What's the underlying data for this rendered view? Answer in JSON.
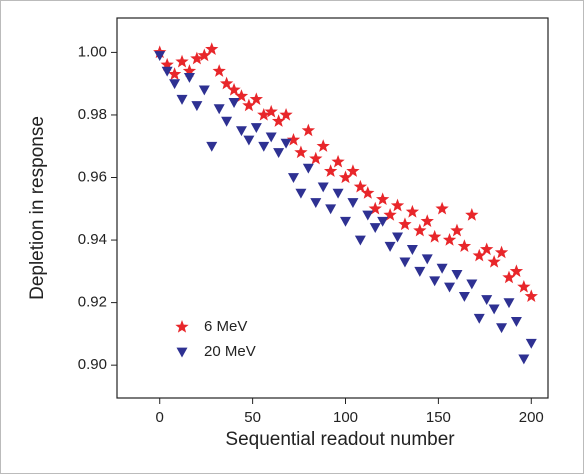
{
  "chart_data": {
    "type": "scatter",
    "xlabel": "Sequential readout number",
    "ylabel": "Depletion in response",
    "xlim": [
      -23,
      209
    ],
    "ylim": [
      0.8895,
      1.011
    ],
    "xticks": [
      0,
      50,
      100,
      150,
      200
    ],
    "yticks": [
      {
        "value": 0.9,
        "label": "0.90"
      },
      {
        "value": 0.92,
        "label": "0.92"
      },
      {
        "value": 0.94,
        "label": "0.94"
      },
      {
        "value": 0.96,
        "label": "0.96"
      },
      {
        "value": 0.98,
        "label": "0.98"
      },
      {
        "value": 1.0,
        "label": "1.00"
      }
    ],
    "x": [
      0,
      4,
      8,
      12,
      16,
      20,
      24,
      28,
      32,
      36,
      40,
      44,
      48,
      52,
      56,
      60,
      64,
      68,
      72,
      76,
      80,
      84,
      88,
      92,
      96,
      100,
      104,
      108,
      112,
      116,
      120,
      124,
      128,
      132,
      136,
      140,
      144,
      148,
      152,
      156,
      160,
      164,
      168,
      172,
      176,
      180,
      184,
      188,
      192,
      196,
      200
    ],
    "series": [
      {
        "name": "6 MeV",
        "color": "#e8262a",
        "marker": "star",
        "values": [
          1.0,
          0.996,
          0.993,
          0.997,
          0.994,
          0.998,
          0.999,
          1.001,
          0.994,
          0.99,
          0.988,
          0.986,
          0.983,
          0.985,
          0.98,
          0.981,
          0.978,
          0.98,
          0.972,
          0.968,
          0.975,
          0.966,
          0.97,
          0.962,
          0.965,
          0.96,
          0.962,
          0.957,
          0.955,
          0.95,
          0.953,
          0.948,
          0.951,
          0.945,
          0.949,
          0.943,
          0.946,
          0.941,
          0.95,
          0.94,
          0.943,
          0.938,
          0.948,
          0.935,
          0.937,
          0.933,
          0.936,
          0.928,
          0.93,
          0.925,
          0.922
        ]
      },
      {
        "name": "20 MeV",
        "color": "#2e3192",
        "marker": "triangle-down",
        "values": [
          0.999,
          0.994,
          0.99,
          0.985,
          0.992,
          0.983,
          0.988,
          0.97,
          0.982,
          0.978,
          0.984,
          0.975,
          0.972,
          0.976,
          0.97,
          0.973,
          0.968,
          0.971,
          0.96,
          0.955,
          0.963,
          0.952,
          0.957,
          0.95,
          0.955,
          0.946,
          0.952,
          0.94,
          0.948,
          0.944,
          0.946,
          0.938,
          0.941,
          0.933,
          0.937,
          0.93,
          0.934,
          0.927,
          0.931,
          0.925,
          0.929,
          0.922,
          0.926,
          0.915,
          0.921,
          0.918,
          0.912,
          0.92,
          0.914,
          0.902,
          0.907
        ]
      }
    ]
  }
}
